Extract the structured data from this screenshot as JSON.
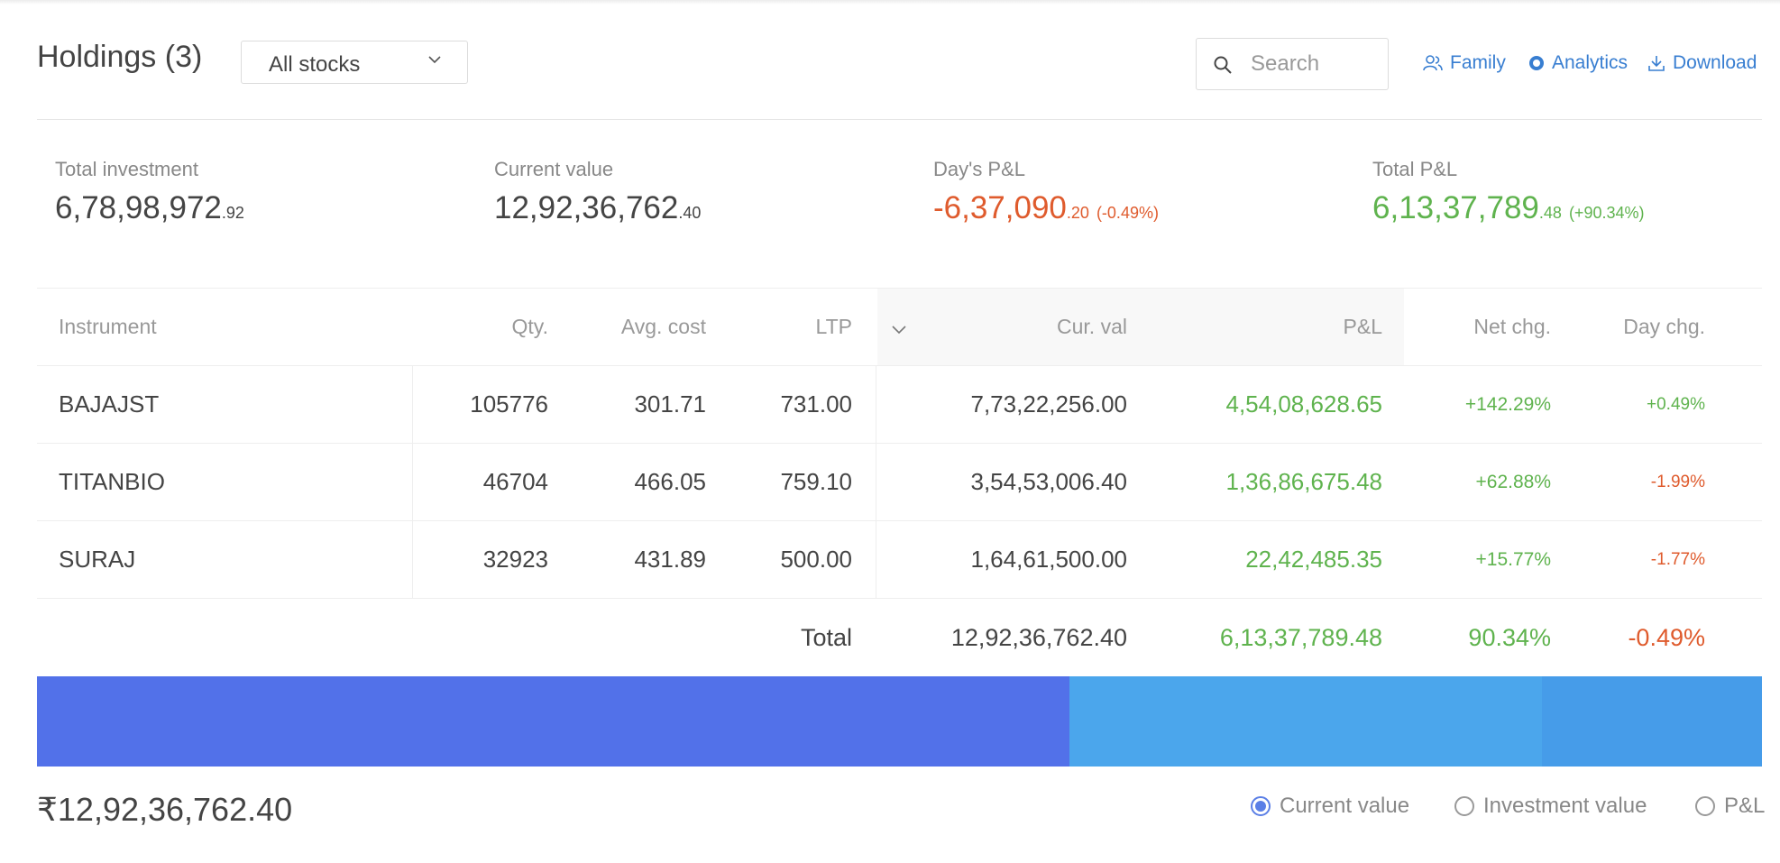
{
  "header": {
    "title": "Holdings (3)",
    "filter": {
      "selected": "All stocks"
    },
    "search": {
      "placeholder": "Search",
      "value": ""
    },
    "links": {
      "family": "Family",
      "analytics": "Analytics",
      "download": "Download"
    },
    "link_color": "#387ed1"
  },
  "summary": {
    "total_investment": {
      "label": "Total investment",
      "int": "6,78,98,972",
      "dec": ".92"
    },
    "current_value": {
      "label": "Current value",
      "int": "12,92,36,762",
      "dec": ".40"
    },
    "days_pnl": {
      "label": "Day's P&L",
      "int": "-6,37,090",
      "dec": ".20",
      "pct": "(-0.49%)",
      "color": "#df5b2d"
    },
    "total_pnl": {
      "label": "Total P&L",
      "int": "6,13,37,789",
      "dec": ".48",
      "pct": "(+90.34%)",
      "color": "#5fb34e"
    }
  },
  "table": {
    "headers": {
      "instrument": "Instrument",
      "qty": "Qty.",
      "avg_cost": "Avg. cost",
      "ltp": "LTP",
      "cur_val": "Cur. val",
      "pnl": "P&L",
      "net_chg": "Net chg.",
      "day_chg": "Day chg."
    },
    "rows": [
      {
        "instrument": "BAJAJST",
        "qty": "105776",
        "avg_cost": "301.71",
        "ltp": "731.00",
        "cur_val": "7,73,22,256.00",
        "pnl": "4,54,08,628.65",
        "net_chg": "+142.29%",
        "day_chg": "+0.49%"
      },
      {
        "instrument": "TITANBIO",
        "qty": "46704",
        "avg_cost": "466.05",
        "ltp": "759.10",
        "cur_val": "3,54,53,006.40",
        "pnl": "1,36,86,675.48",
        "net_chg": "+62.88%",
        "day_chg": "-1.99%"
      },
      {
        "instrument": "SURAJ",
        "qty": "32923",
        "avg_cost": "431.89",
        "ltp": "500.00",
        "cur_val": "1,64,61,500.00",
        "pnl": "22,42,485.35",
        "net_chg": "+15.77%",
        "day_chg": "-1.77%"
      }
    ],
    "total": {
      "label": "Total",
      "cur_val": "12,92,36,762.40",
      "pnl": "6,13,37,789.48",
      "net_chg": "90.34%",
      "day_chg": "-0.49%"
    }
  },
  "allocation": {
    "segments": [
      {
        "instrument": "BAJAJST",
        "value": 77322256.0,
        "color": "#5271e9"
      },
      {
        "instrument": "TITANBIO",
        "value": 35453006.4,
        "color": "#4ba6ec"
      },
      {
        "instrument": "SURAJ",
        "value": 16461500.0,
        "color": "#469ce9"
      }
    ]
  },
  "footer": {
    "total_value": "₹12,92,36,762.40",
    "options": {
      "current": "Current value",
      "investment": "Investment value",
      "pnl": "P&L"
    },
    "selected": "current"
  }
}
